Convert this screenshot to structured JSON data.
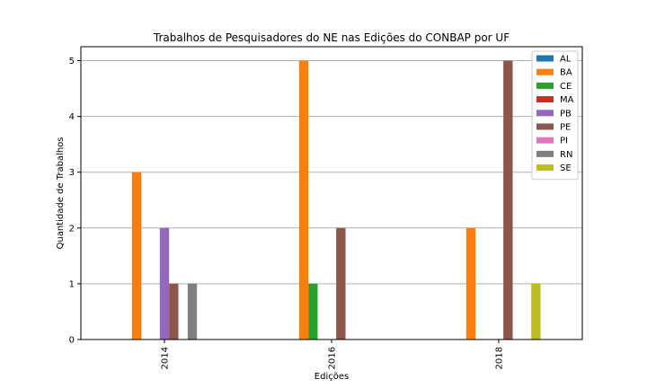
{
  "chart_data": {
    "type": "bar",
    "title": "Trabalhos de Pesquisadores do NE nas Edições do CONBAP por UF",
    "xlabel": "Edições",
    "ylabel": "Quantidade de Trabalhos",
    "categories": [
      "2014",
      "2016",
      "2018"
    ],
    "yticks": [
      "0",
      "1",
      "2",
      "3",
      "4",
      "5"
    ],
    "ylim": [
      0,
      5.25
    ],
    "grid": "y",
    "legend_position": "top-right",
    "series": [
      {
        "name": "AL",
        "color": "#1f77b4",
        "values": [
          0,
          0,
          0
        ]
      },
      {
        "name": "BA",
        "color": "#ff7f0e",
        "values": [
          3,
          5,
          2
        ]
      },
      {
        "name": "CE",
        "color": "#2ca02c",
        "values": [
          0,
          1,
          0
        ]
      },
      {
        "name": "MA",
        "color": "#d62728",
        "values": [
          0,
          0,
          0
        ]
      },
      {
        "name": "PB",
        "color": "#9467bd",
        "values": [
          2,
          0,
          0
        ]
      },
      {
        "name": "PE",
        "color": "#8c564b",
        "values": [
          1,
          2,
          5
        ]
      },
      {
        "name": "PI",
        "color": "#e377c2",
        "values": [
          0,
          0,
          0
        ]
      },
      {
        "name": "RN",
        "color": "#7f7f7f",
        "values": [
          1,
          0,
          0
        ]
      },
      {
        "name": "SE",
        "color": "#bcbd22",
        "values": [
          0,
          0,
          1
        ]
      }
    ]
  }
}
